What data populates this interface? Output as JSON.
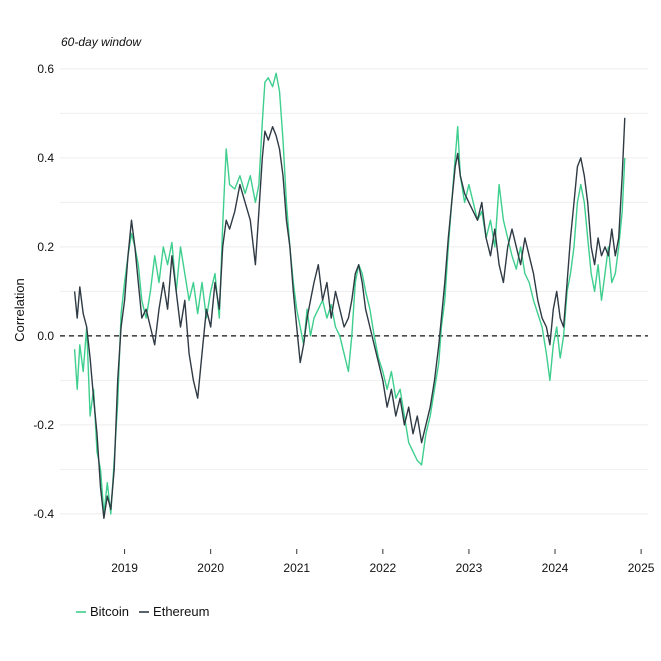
{
  "chart_data": {
    "type": "line",
    "subtitle": "60-day window",
    "ylabel": "Correlation",
    "xlabel": "",
    "ylim": [
      -0.47,
      0.62
    ],
    "xlim": [
      2018.25,
      2025.08
    ],
    "yticks": [
      -0.4,
      -0.2,
      0.0,
      0.2,
      0.4,
      0.6
    ],
    "ytick_labels": [
      "-0.4",
      "-0.2",
      "0.0",
      "0.2",
      "0.4",
      "0.6"
    ],
    "xticks": [
      2019,
      2020,
      2021,
      2022,
      2023,
      2024,
      2025
    ],
    "xtick_labels": [
      "2019",
      "2020",
      "2021",
      "2022",
      "2023",
      "2024",
      "2025"
    ],
    "reference_line": {
      "y": 0.0,
      "style": "dashed",
      "color": "#111111"
    },
    "grid": true,
    "legend_position": "bottom-left",
    "series": [
      {
        "name": "Bitcoin",
        "color": "#3ecf8e",
        "points": [
          [
            2018.42,
            -0.03
          ],
          [
            2018.45,
            -0.12
          ],
          [
            2018.48,
            -0.02
          ],
          [
            2018.52,
            -0.08
          ],
          [
            2018.56,
            0.02
          ],
          [
            2018.6,
            -0.18
          ],
          [
            2018.64,
            -0.12
          ],
          [
            2018.68,
            -0.26
          ],
          [
            2018.72,
            -0.3
          ],
          [
            2018.76,
            -0.4
          ],
          [
            2018.8,
            -0.33
          ],
          [
            2018.84,
            -0.4
          ],
          [
            2018.88,
            -0.28
          ],
          [
            2018.92,
            -0.15
          ],
          [
            2018.96,
            0.05
          ],
          [
            2019.0,
            0.12
          ],
          [
            2019.04,
            0.18
          ],
          [
            2019.08,
            0.23
          ],
          [
            2019.12,
            0.2
          ],
          [
            2019.16,
            0.16
          ],
          [
            2019.2,
            0.08
          ],
          [
            2019.25,
            0.04
          ],
          [
            2019.3,
            0.1
          ],
          [
            2019.35,
            0.18
          ],
          [
            2019.4,
            0.12
          ],
          [
            2019.45,
            0.2
          ],
          [
            2019.5,
            0.16
          ],
          [
            2019.55,
            0.21
          ],
          [
            2019.6,
            0.1
          ],
          [
            2019.65,
            0.2
          ],
          [
            2019.7,
            0.14
          ],
          [
            2019.75,
            0.08
          ],
          [
            2019.8,
            0.12
          ],
          [
            2019.85,
            0.05
          ],
          [
            2019.9,
            0.12
          ],
          [
            2019.95,
            0.04
          ],
          [
            2020.0,
            0.1
          ],
          [
            2020.05,
            0.14
          ],
          [
            2020.1,
            0.04
          ],
          [
            2020.14,
            0.25
          ],
          [
            2020.18,
            0.42
          ],
          [
            2020.22,
            0.34
          ],
          [
            2020.28,
            0.33
          ],
          [
            2020.34,
            0.36
          ],
          [
            2020.4,
            0.32
          ],
          [
            2020.46,
            0.36
          ],
          [
            2020.52,
            0.3
          ],
          [
            2020.56,
            0.34
          ],
          [
            2020.6,
            0.48
          ],
          [
            2020.63,
            0.57
          ],
          [
            2020.67,
            0.58
          ],
          [
            2020.72,
            0.56
          ],
          [
            2020.76,
            0.59
          ],
          [
            2020.8,
            0.55
          ],
          [
            2020.84,
            0.44
          ],
          [
            2020.88,
            0.3
          ],
          [
            2020.92,
            0.2
          ],
          [
            2020.96,
            0.12
          ],
          [
            2021.0,
            0.06
          ],
          [
            2021.04,
            0.02
          ],
          [
            2021.08,
            -0.02
          ],
          [
            2021.12,
            0.06
          ],
          [
            2021.16,
            0.0
          ],
          [
            2021.2,
            0.04
          ],
          [
            2021.25,
            0.06
          ],
          [
            2021.3,
            0.08
          ],
          [
            2021.35,
            0.04
          ],
          [
            2021.4,
            0.07
          ],
          [
            2021.45,
            0.02
          ],
          [
            2021.5,
            0.0
          ],
          [
            2021.55,
            -0.04
          ],
          [
            2021.6,
            -0.08
          ],
          [
            2021.64,
            0.0
          ],
          [
            2021.68,
            0.12
          ],
          [
            2021.72,
            0.16
          ],
          [
            2021.76,
            0.14
          ],
          [
            2021.8,
            0.1
          ],
          [
            2021.85,
            0.06
          ],
          [
            2021.9,
            0.0
          ],
          [
            2021.95,
            -0.05
          ],
          [
            2022.0,
            -0.08
          ],
          [
            2022.05,
            -0.12
          ],
          [
            2022.1,
            -0.08
          ],
          [
            2022.15,
            -0.14
          ],
          [
            2022.2,
            -0.12
          ],
          [
            2022.25,
            -0.18
          ],
          [
            2022.3,
            -0.24
          ],
          [
            2022.35,
            -0.26
          ],
          [
            2022.4,
            -0.28
          ],
          [
            2022.45,
            -0.29
          ],
          [
            2022.5,
            -0.22
          ],
          [
            2022.55,
            -0.18
          ],
          [
            2022.6,
            -0.12
          ],
          [
            2022.65,
            -0.06
          ],
          [
            2022.68,
            0.02
          ],
          [
            2022.72,
            0.08
          ],
          [
            2022.76,
            0.2
          ],
          [
            2022.8,
            0.3
          ],
          [
            2022.84,
            0.4
          ],
          [
            2022.87,
            0.47
          ],
          [
            2022.9,
            0.36
          ],
          [
            2022.95,
            0.3
          ],
          [
            2023.0,
            0.34
          ],
          [
            2023.05,
            0.3
          ],
          [
            2023.1,
            0.26
          ],
          [
            2023.15,
            0.28
          ],
          [
            2023.2,
            0.22
          ],
          [
            2023.25,
            0.26
          ],
          [
            2023.3,
            0.2
          ],
          [
            2023.35,
            0.34
          ],
          [
            2023.4,
            0.26
          ],
          [
            2023.45,
            0.22
          ],
          [
            2023.5,
            0.18
          ],
          [
            2023.55,
            0.15
          ],
          [
            2023.6,
            0.2
          ],
          [
            2023.65,
            0.14
          ],
          [
            2023.7,
            0.12
          ],
          [
            2023.75,
            0.08
          ],
          [
            2023.8,
            0.05
          ],
          [
            2023.85,
            0.02
          ],
          [
            2023.9,
            -0.04
          ],
          [
            2023.94,
            -0.1
          ],
          [
            2023.98,
            -0.02
          ],
          [
            2024.02,
            0.02
          ],
          [
            2024.06,
            -0.05
          ],
          [
            2024.1,
            0.0
          ],
          [
            2024.14,
            0.1
          ],
          [
            2024.18,
            0.14
          ],
          [
            2024.22,
            0.2
          ],
          [
            2024.26,
            0.3
          ],
          [
            2024.3,
            0.34
          ],
          [
            2024.34,
            0.3
          ],
          [
            2024.38,
            0.22
          ],
          [
            2024.42,
            0.14
          ],
          [
            2024.46,
            0.1
          ],
          [
            2024.5,
            0.16
          ],
          [
            2024.54,
            0.08
          ],
          [
            2024.58,
            0.14
          ],
          [
            2024.62,
            0.2
          ],
          [
            2024.66,
            0.12
          ],
          [
            2024.7,
            0.14
          ],
          [
            2024.74,
            0.2
          ],
          [
            2024.78,
            0.28
          ],
          [
            2024.81,
            0.4
          ]
        ]
      },
      {
        "name": "Ethereum",
        "color": "#2f3a44",
        "points": [
          [
            2018.42,
            0.1
          ],
          [
            2018.45,
            0.04
          ],
          [
            2018.48,
            0.11
          ],
          [
            2018.52,
            0.05
          ],
          [
            2018.56,
            0.02
          ],
          [
            2018.6,
            -0.05
          ],
          [
            2018.64,
            -0.14
          ],
          [
            2018.68,
            -0.22
          ],
          [
            2018.72,
            -0.34
          ],
          [
            2018.76,
            -0.41
          ],
          [
            2018.8,
            -0.36
          ],
          [
            2018.84,
            -0.39
          ],
          [
            2018.88,
            -0.3
          ],
          [
            2018.92,
            -0.1
          ],
          [
            2018.96,
            0.02
          ],
          [
            2019.0,
            0.08
          ],
          [
            2019.04,
            0.18
          ],
          [
            2019.08,
            0.26
          ],
          [
            2019.12,
            0.2
          ],
          [
            2019.16,
            0.12
          ],
          [
            2019.2,
            0.04
          ],
          [
            2019.25,
            0.06
          ],
          [
            2019.3,
            0.02
          ],
          [
            2019.35,
            -0.02
          ],
          [
            2019.4,
            0.06
          ],
          [
            2019.45,
            0.12
          ],
          [
            2019.5,
            0.06
          ],
          [
            2019.55,
            0.18
          ],
          [
            2019.6,
            0.1
          ],
          [
            2019.65,
            0.02
          ],
          [
            2019.7,
            0.08
          ],
          [
            2019.75,
            -0.04
          ],
          [
            2019.8,
            -0.1
          ],
          [
            2019.85,
            -0.14
          ],
          [
            2019.9,
            -0.04
          ],
          [
            2019.95,
            0.06
          ],
          [
            2020.0,
            0.02
          ],
          [
            2020.05,
            0.12
          ],
          [
            2020.1,
            0.06
          ],
          [
            2020.14,
            0.2
          ],
          [
            2020.18,
            0.26
          ],
          [
            2020.22,
            0.24
          ],
          [
            2020.28,
            0.28
          ],
          [
            2020.34,
            0.34
          ],
          [
            2020.4,
            0.3
          ],
          [
            2020.46,
            0.26
          ],
          [
            2020.52,
            0.16
          ],
          [
            2020.56,
            0.28
          ],
          [
            2020.6,
            0.4
          ],
          [
            2020.63,
            0.46
          ],
          [
            2020.67,
            0.44
          ],
          [
            2020.72,
            0.47
          ],
          [
            2020.76,
            0.45
          ],
          [
            2020.8,
            0.42
          ],
          [
            2020.84,
            0.36
          ],
          [
            2020.88,
            0.26
          ],
          [
            2020.92,
            0.2
          ],
          [
            2020.96,
            0.1
          ],
          [
            2021.0,
            0.02
          ],
          [
            2021.04,
            -0.06
          ],
          [
            2021.08,
            -0.02
          ],
          [
            2021.12,
            0.04
          ],
          [
            2021.16,
            0.08
          ],
          [
            2021.2,
            0.12
          ],
          [
            2021.25,
            0.16
          ],
          [
            2021.3,
            0.08
          ],
          [
            2021.35,
            0.12
          ],
          [
            2021.4,
            0.04
          ],
          [
            2021.45,
            0.1
          ],
          [
            2021.5,
            0.06
          ],
          [
            2021.55,
            0.02
          ],
          [
            2021.6,
            0.04
          ],
          [
            2021.64,
            0.08
          ],
          [
            2021.68,
            0.14
          ],
          [
            2021.72,
            0.16
          ],
          [
            2021.76,
            0.12
          ],
          [
            2021.8,
            0.06
          ],
          [
            2021.85,
            0.02
          ],
          [
            2021.9,
            -0.02
          ],
          [
            2021.95,
            -0.06
          ],
          [
            2022.0,
            -0.1
          ],
          [
            2022.05,
            -0.16
          ],
          [
            2022.1,
            -0.12
          ],
          [
            2022.15,
            -0.18
          ],
          [
            2022.2,
            -0.14
          ],
          [
            2022.25,
            -0.2
          ],
          [
            2022.3,
            -0.16
          ],
          [
            2022.35,
            -0.22
          ],
          [
            2022.4,
            -0.18
          ],
          [
            2022.45,
            -0.24
          ],
          [
            2022.5,
            -0.2
          ],
          [
            2022.55,
            -0.16
          ],
          [
            2022.6,
            -0.1
          ],
          [
            2022.65,
            -0.02
          ],
          [
            2022.68,
            0.04
          ],
          [
            2022.72,
            0.12
          ],
          [
            2022.76,
            0.22
          ],
          [
            2022.8,
            0.3
          ],
          [
            2022.84,
            0.38
          ],
          [
            2022.87,
            0.41
          ],
          [
            2022.9,
            0.36
          ],
          [
            2022.95,
            0.32
          ],
          [
            2023.0,
            0.3
          ],
          [
            2023.05,
            0.28
          ],
          [
            2023.1,
            0.26
          ],
          [
            2023.15,
            0.3
          ],
          [
            2023.2,
            0.22
          ],
          [
            2023.25,
            0.18
          ],
          [
            2023.3,
            0.24
          ],
          [
            2023.35,
            0.16
          ],
          [
            2023.4,
            0.12
          ],
          [
            2023.45,
            0.2
          ],
          [
            2023.5,
            0.24
          ],
          [
            2023.55,
            0.2
          ],
          [
            2023.6,
            0.16
          ],
          [
            2023.65,
            0.22
          ],
          [
            2023.7,
            0.18
          ],
          [
            2023.75,
            0.14
          ],
          [
            2023.8,
            0.08
          ],
          [
            2023.85,
            0.04
          ],
          [
            2023.9,
            0.02
          ],
          [
            2023.94,
            -0.02
          ],
          [
            2023.98,
            0.06
          ],
          [
            2024.02,
            0.1
          ],
          [
            2024.06,
            0.04
          ],
          [
            2024.1,
            0.02
          ],
          [
            2024.14,
            0.12
          ],
          [
            2024.18,
            0.22
          ],
          [
            2024.22,
            0.3
          ],
          [
            2024.26,
            0.38
          ],
          [
            2024.3,
            0.4
          ],
          [
            2024.34,
            0.36
          ],
          [
            2024.38,
            0.3
          ],
          [
            2024.42,
            0.2
          ],
          [
            2024.46,
            0.16
          ],
          [
            2024.5,
            0.22
          ],
          [
            2024.54,
            0.18
          ],
          [
            2024.58,
            0.2
          ],
          [
            2024.62,
            0.18
          ],
          [
            2024.66,
            0.24
          ],
          [
            2024.7,
            0.18
          ],
          [
            2024.74,
            0.22
          ],
          [
            2024.78,
            0.36
          ],
          [
            2024.81,
            0.49
          ]
        ]
      }
    ]
  }
}
